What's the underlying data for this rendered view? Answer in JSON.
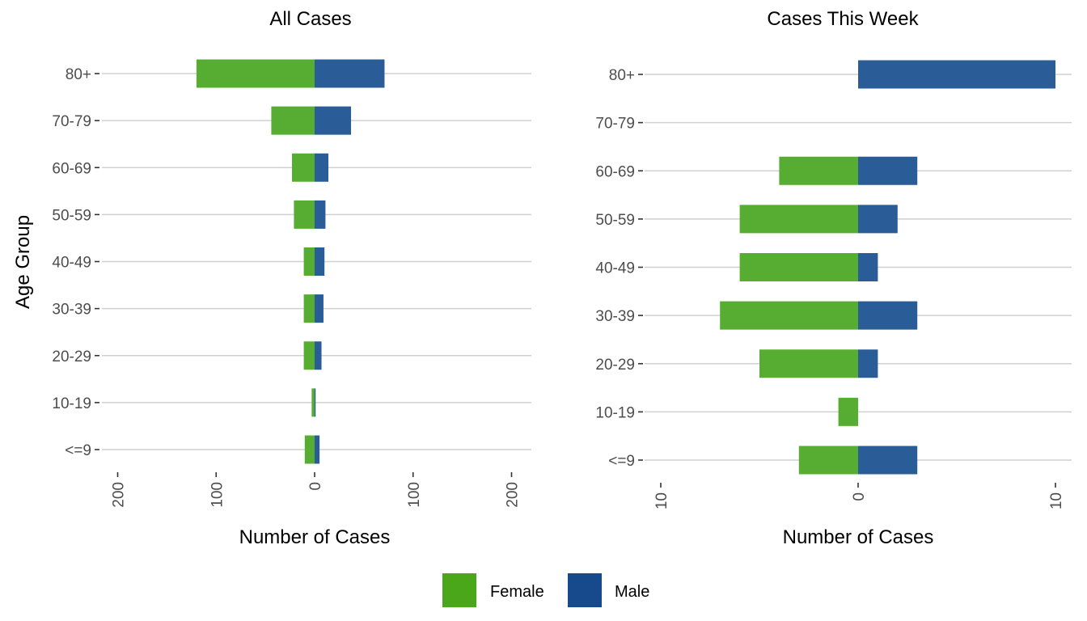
{
  "chart_data": [
    {
      "type": "bar",
      "orientation": "horizontal",
      "layout": "population-pyramid",
      "title": "All Cases",
      "xlabel": "Number of Cases",
      "ylabel": "Age Group",
      "xlim": [
        -200,
        200
      ],
      "xticks": [
        -200,
        -100,
        0,
        100,
        200
      ],
      "xtick_labels": [
        "200",
        "100",
        "0",
        "100",
        "200"
      ],
      "categories": [
        "<=9",
        "10-19",
        "20-29",
        "30-39",
        "40-49",
        "50-59",
        "60-69",
        "70-79",
        "80+"
      ],
      "series": [
        {
          "name": "Female",
          "values": [
            10,
            3,
            11,
            11,
            11,
            21,
            23,
            44,
            120
          ]
        },
        {
          "name": "Male",
          "values": [
            5,
            1,
            7,
            9,
            10,
            11,
            14,
            37,
            71
          ]
        }
      ],
      "grid": "horizontal-major"
    },
    {
      "type": "bar",
      "orientation": "horizontal",
      "layout": "population-pyramid",
      "title": "Cases This Week",
      "xlabel": "Number of Cases",
      "ylabel": "",
      "xlim": [
        -10,
        10
      ],
      "xticks": [
        -10,
        0,
        10
      ],
      "xtick_labels": [
        "10",
        "0",
        "10"
      ],
      "categories": [
        "<=9",
        "10-19",
        "20-29",
        "30-39",
        "40-49",
        "50-59",
        "60-69",
        "70-79",
        "80+"
      ],
      "series": [
        {
          "name": "Female",
          "values": [
            3,
            1,
            5,
            7,
            6,
            6,
            4,
            0,
            0
          ]
        },
        {
          "name": "Male",
          "values": [
            3,
            0,
            1,
            3,
            1,
            2,
            3,
            0,
            10
          ]
        }
      ],
      "grid": "horizontal-major"
    }
  ],
  "legend": {
    "position": "bottom",
    "items": [
      {
        "label": "Female",
        "color": "#4aa71a"
      },
      {
        "label": "Male",
        "color": "#164a8c"
      }
    ]
  },
  "bar_colors": {
    "Female": "#56ad31",
    "Male": "#2a5c97"
  }
}
